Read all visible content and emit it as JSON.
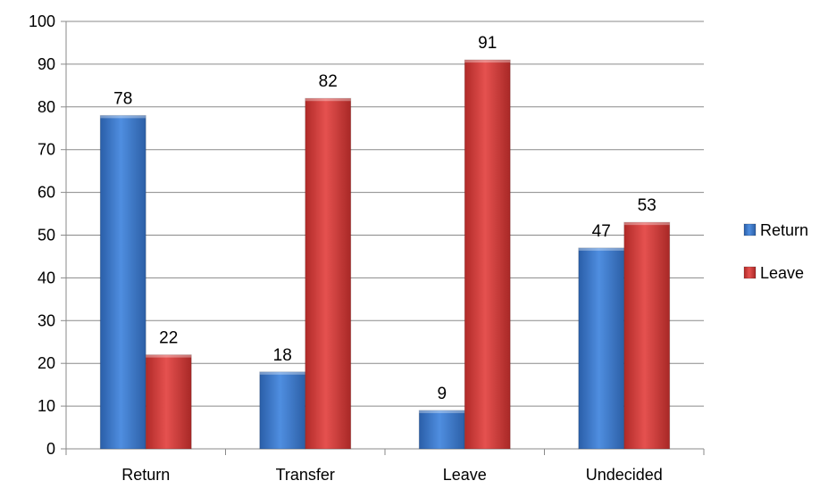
{
  "chart_data": {
    "type": "bar",
    "categories": [
      "Return",
      "Transfer",
      "Leave",
      "Undecided"
    ],
    "series": [
      {
        "name": "Return",
        "values": [
          78,
          18,
          9,
          47
        ],
        "color": "#3a73c4"
      },
      {
        "name": "Leave",
        "values": [
          22,
          82,
          91,
          53
        ],
        "color": "#cc3a38"
      }
    ],
    "ylim": [
      0,
      100
    ],
    "yticks": [
      0,
      10,
      20,
      30,
      40,
      50,
      60,
      70,
      80,
      90,
      100
    ],
    "grid": true,
    "legend": "right",
    "data_labels": true
  }
}
